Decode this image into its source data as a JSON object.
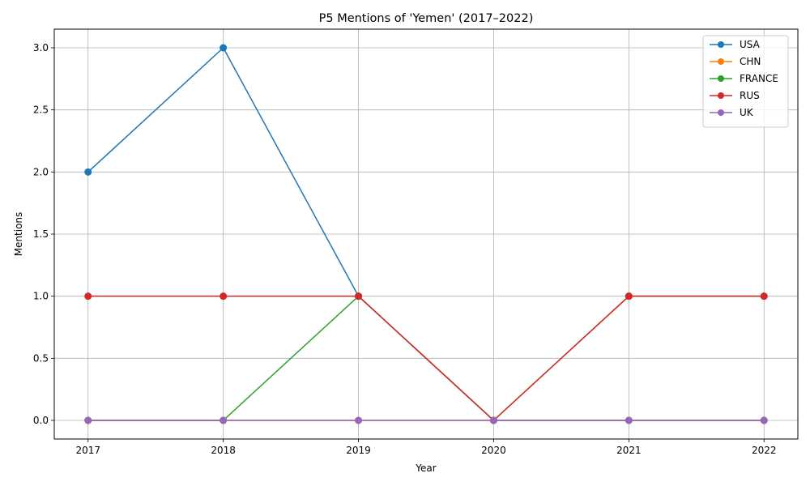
{
  "chart_data": {
    "type": "line",
    "title": "P5 Mentions of 'Yemen' (2017–2022)",
    "xlabel": "Year",
    "ylabel": "Mentions",
    "x": [
      2017,
      2018,
      2019,
      2020,
      2021,
      2022
    ],
    "x_tick_labels": [
      "2017",
      "2018",
      "2019",
      "2020",
      "2021",
      "2022"
    ],
    "y_ticks": [
      0.0,
      0.5,
      1.0,
      1.5,
      2.0,
      2.5,
      3.0
    ],
    "y_tick_labels": [
      "0.0",
      "0.5",
      "1.0",
      "1.5",
      "2.0",
      "2.5",
      "3.0"
    ],
    "xlim": [
      2016.75,
      2022.25
    ],
    "ylim": [
      -0.15,
      3.15
    ],
    "grid": true,
    "legend_position": "top-right",
    "series": [
      {
        "name": "USA",
        "color": "#1f77b4",
        "values": [
          2,
          3,
          1,
          0,
          0,
          0
        ]
      },
      {
        "name": "CHN",
        "color": "#ff7f0e",
        "values": [
          0,
          0,
          0,
          0,
          0,
          0
        ]
      },
      {
        "name": "FRANCE",
        "color": "#2ca02c",
        "values": [
          0,
          0,
          1,
          0,
          1,
          1
        ]
      },
      {
        "name": "RUS",
        "color": "#d62728",
        "values": [
          1,
          1,
          1,
          0,
          1,
          1
        ]
      },
      {
        "name": "UK",
        "color": "#9467bd",
        "values": [
          0,
          0,
          0,
          0,
          0,
          0
        ]
      }
    ]
  }
}
